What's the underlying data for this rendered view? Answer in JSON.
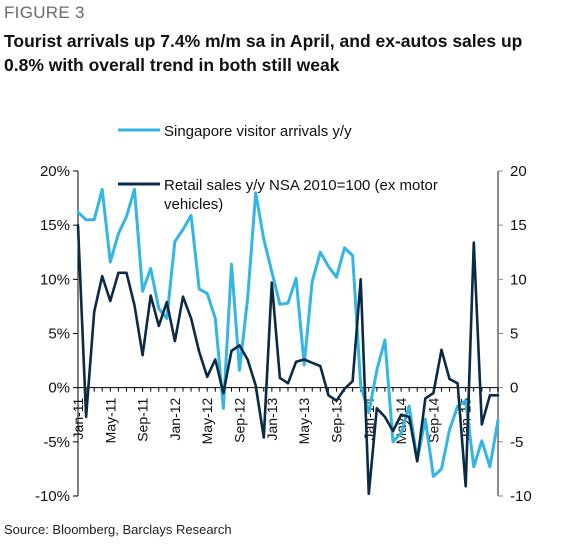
{
  "figure_label": "FIGURE 3",
  "title": "Tourist arrivals up 7.4% m/m sa in April, and ex-autos sales up 0.8% with overall trend in both still weak",
  "source": "Source: Bloomberg, Barclays Research",
  "colors": {
    "visitor": "#33b5e5",
    "retail": "#0b2a44",
    "axis": "#000000"
  },
  "chart_data": {
    "type": "line",
    "x_tick_labels": [
      "Jan-11",
      "May-11",
      "Sep-11",
      "Jan-12",
      "May-12",
      "Sep-12",
      "Jan-13",
      "May-13",
      "Sep-13",
      "Jan-14",
      "May-14",
      "Sep-14",
      "Jan-15"
    ],
    "x_tick_months": [
      0,
      4,
      8,
      12,
      16,
      20,
      24,
      28,
      32,
      36,
      40,
      44,
      48
    ],
    "x_range_months": [
      0,
      52
    ],
    "left_axis": {
      "ylim": [
        -10,
        20
      ],
      "ticks": [
        -10,
        -5,
        0,
        5,
        10,
        15,
        20
      ],
      "tick_labels": [
        "-10%",
        "-5%",
        "0%",
        "5%",
        "10%",
        "15%",
        "20%"
      ]
    },
    "right_axis": {
      "ylim": [
        -10,
        20
      ],
      "ticks": [
        -10,
        -5,
        0,
        5,
        10,
        15,
        20
      ],
      "tick_labels": [
        "-10",
        "-5",
        "0",
        "5",
        "10",
        "15",
        "20"
      ]
    },
    "legend": [
      {
        "name": "Singapore visitor arrivals y/y",
        "axis": "left"
      },
      {
        "name": "Retail sales y/y NSA 2010=100 (ex motor vehicles)",
        "axis": "right"
      }
    ],
    "series": [
      {
        "name": "Singapore visitor arrivals y/y",
        "axis": "left",
        "months": [
          0,
          1,
          2,
          3,
          4,
          5,
          6,
          7,
          8,
          9,
          10,
          11,
          12,
          13,
          14,
          15,
          16,
          17,
          18,
          19,
          20,
          21,
          22,
          23,
          24,
          25,
          26,
          27,
          28,
          29,
          30,
          31,
          32,
          33,
          34,
          35,
          36,
          37,
          38,
          39,
          40,
          41,
          42,
          43,
          44,
          45,
          46,
          47,
          48,
          49,
          50,
          51,
          52
        ],
        "values": [
          16.2,
          15.5,
          15.5,
          18.3,
          11.6,
          14.2,
          15.8,
          18.3,
          8.9,
          11,
          7.3,
          6.4,
          13.5,
          14.6,
          15.9,
          9.1,
          8.7,
          6.4,
          -1.9,
          11.4,
          1.6,
          8.2,
          18,
          13.7,
          10.7,
          7.7,
          7.8,
          10.1,
          2.1,
          9.8,
          12.5,
          11.2,
          10.2,
          12.9,
          12.2,
          0.2,
          -2.3,
          1.6,
          4.4,
          -5,
          -4.2,
          -1.7,
          -6.7,
          -2.9,
          -8.2,
          -7.5,
          -3.9,
          -1.7,
          -1.2,
          -7.3,
          -4.9,
          -7.3,
          -3
        ]
      },
      {
        "name": "Retail sales y/y NSA 2010=100 (ex motor vehicles)",
        "axis": "right",
        "months": [
          0,
          1,
          2,
          3,
          4,
          5,
          6,
          7,
          8,
          9,
          10,
          11,
          12,
          13,
          14,
          15,
          16,
          17,
          18,
          19,
          20,
          21,
          22,
          23,
          24,
          25,
          26,
          27,
          28,
          29,
          30,
          31,
          32,
          33,
          34,
          35,
          36,
          37,
          38,
          39,
          40,
          41,
          42,
          43,
          44,
          45,
          46,
          47,
          48,
          49,
          50,
          51,
          52
        ],
        "values": [
          15,
          -2.7,
          7,
          10.3,
          8,
          10.6,
          10.6,
          7.6,
          3,
          8.5,
          5.7,
          7.9,
          4.3,
          8.4,
          6.4,
          3.3,
          1,
          2.6,
          -0.5,
          3.4,
          3.9,
          2.6,
          0.2,
          -4.6,
          9.7,
          0.9,
          0.4,
          2.4,
          2.6,
          2.3,
          2,
          -0.7,
          -1.2,
          -0.1,
          0.6,
          10,
          -9.8,
          -1.9,
          -2.7,
          -4,
          -2.5,
          -2.7,
          -6.8,
          -1,
          -0.5,
          3.5,
          0.8,
          0.4,
          -9.1,
          13.4,
          -3.4,
          -0.7,
          -0.7
        ]
      }
    ]
  }
}
